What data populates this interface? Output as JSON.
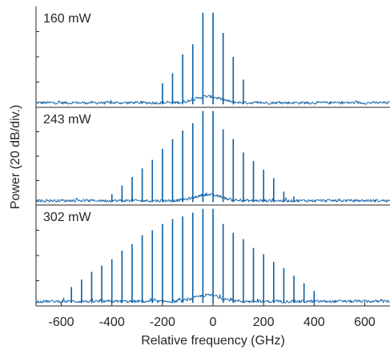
{
  "chart_data": {
    "type": "line",
    "xlabel": "Relative frequency (GHz)",
    "ylabel": "Power (20 dB/div.)",
    "xlim": [
      -700,
      700
    ],
    "xticks": [
      -600,
      -400,
      -200,
      0,
      200,
      400,
      600
    ],
    "y_units": "divisions (20 dB per division), each panel 4 divisions tall",
    "grid": false,
    "line_color": "#0b5fa5",
    "comb_spacing_ghz": 40,
    "panels": [
      {
        "label": "160 mW",
        "noise_floor_div": 0.12,
        "lines": [
          {
            "x": -200,
            "y": 0.95
          },
          {
            "x": -160,
            "y": 1.35
          },
          {
            "x": -120,
            "y": 2.1
          },
          {
            "x": -80,
            "y": 2.5
          },
          {
            "x": -40,
            "y": 3.75
          },
          {
            "x": 0,
            "y": 3.75
          },
          {
            "x": 40,
            "y": 2.95
          },
          {
            "x": 80,
            "y": 2.0
          },
          {
            "x": 120,
            "y": 1.1
          }
        ]
      },
      {
        "label": "243 mW",
        "noise_floor_div": 0.12,
        "lines": [
          {
            "x": -400,
            "y": 0.45
          },
          {
            "x": -360,
            "y": 0.8
          },
          {
            "x": -320,
            "y": 1.15
          },
          {
            "x": -280,
            "y": 1.5
          },
          {
            "x": -240,
            "y": 1.85
          },
          {
            "x": -200,
            "y": 2.3
          },
          {
            "x": -160,
            "y": 2.7
          },
          {
            "x": -120,
            "y": 3.05
          },
          {
            "x": -80,
            "y": 3.35
          },
          {
            "x": -40,
            "y": 3.85
          },
          {
            "x": 0,
            "y": 3.85
          },
          {
            "x": 40,
            "y": 3.1
          },
          {
            "x": 80,
            "y": 2.7
          },
          {
            "x": 120,
            "y": 2.15
          },
          {
            "x": 160,
            "y": 1.8
          },
          {
            "x": 200,
            "y": 1.45
          },
          {
            "x": 240,
            "y": 1.1
          },
          {
            "x": 280,
            "y": 0.55
          },
          {
            "x": 320,
            "y": 0.35
          }
        ]
      },
      {
        "label": "302 mW",
        "noise_floor_div": 0.12,
        "lines": [
          {
            "x": -560,
            "y": 0.75
          },
          {
            "x": -520,
            "y": 1.05
          },
          {
            "x": -480,
            "y": 1.35
          },
          {
            "x": -440,
            "y": 1.6
          },
          {
            "x": -400,
            "y": 1.85
          },
          {
            "x": -360,
            "y": 2.2
          },
          {
            "x": -320,
            "y": 2.45
          },
          {
            "x": -280,
            "y": 2.8
          },
          {
            "x": -240,
            "y": 3.0
          },
          {
            "x": -200,
            "y": 3.25
          },
          {
            "x": -160,
            "y": 3.45
          },
          {
            "x": -120,
            "y": 3.55
          },
          {
            "x": -80,
            "y": 3.7
          },
          {
            "x": -40,
            "y": 3.85
          },
          {
            "x": 0,
            "y": 3.85
          },
          {
            "x": 40,
            "y": 3.25
          },
          {
            "x": 80,
            "y": 2.9
          },
          {
            "x": 120,
            "y": 2.65
          },
          {
            "x": 160,
            "y": 2.3
          },
          {
            "x": 200,
            "y": 2.05
          },
          {
            "x": 240,
            "y": 1.75
          },
          {
            "x": 280,
            "y": 1.5
          },
          {
            "x": 320,
            "y": 1.2
          },
          {
            "x": 360,
            "y": 0.9
          },
          {
            "x": 400,
            "y": 0.6
          }
        ]
      }
    ]
  }
}
